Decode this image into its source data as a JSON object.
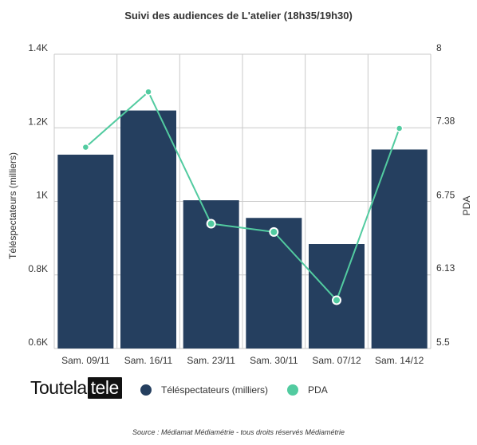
{
  "brand": {
    "logo_main": "Toutela",
    "logo_box": "tele"
  },
  "source": "Source : Médiamat Médiamétrie - tous droits réservés Médiamétrie",
  "colors": {
    "bars": "#253f5f",
    "line": "#52cba0",
    "grid": "#c9c9c9",
    "text": "#333333"
  },
  "legend": [
    {
      "label": "Téléspectateurs (milliers)",
      "color": "#253f5f"
    },
    {
      "label": "PDA",
      "color": "#52cba0"
    }
  ],
  "chart_data": {
    "type": "bar",
    "title": "Suivi des audiences de L'atelier (18h35/19h30)",
    "categories": [
      "Sam. 09/11",
      "Sam. 16/11",
      "Sam. 23/11",
      "Sam. 30/11",
      "Sam. 07/12",
      "Sam. 14/12"
    ],
    "series": [
      {
        "name": "Téléspectateurs (milliers)",
        "type": "bar",
        "axis": "left",
        "values": [
          1127,
          1247,
          1003,
          955,
          884,
          1141
        ]
      },
      {
        "name": "PDA",
        "type": "line",
        "axis": "right",
        "values": [
          7.21,
          7.68,
          6.56,
          6.49,
          5.91,
          7.37
        ]
      }
    ],
    "y_left": {
      "label": "Téléspectateurs (milliers)",
      "min": 600,
      "max": 1400,
      "ticks": [
        600,
        800,
        1000,
        1200,
        1400
      ],
      "tick_labels": [
        "0.6K",
        "0.8K",
        "1K",
        "1.2K",
        "1.4K"
      ]
    },
    "y_right": {
      "label": "PDA",
      "min": 5.5,
      "max": 8,
      "ticks": [
        5.5,
        6.13,
        6.75,
        7.38,
        8
      ],
      "tick_labels": [
        "5.5",
        "6.13",
        "6.75",
        "7.38",
        "8"
      ]
    },
    "grid": true,
    "legend_position": "bottom"
  }
}
